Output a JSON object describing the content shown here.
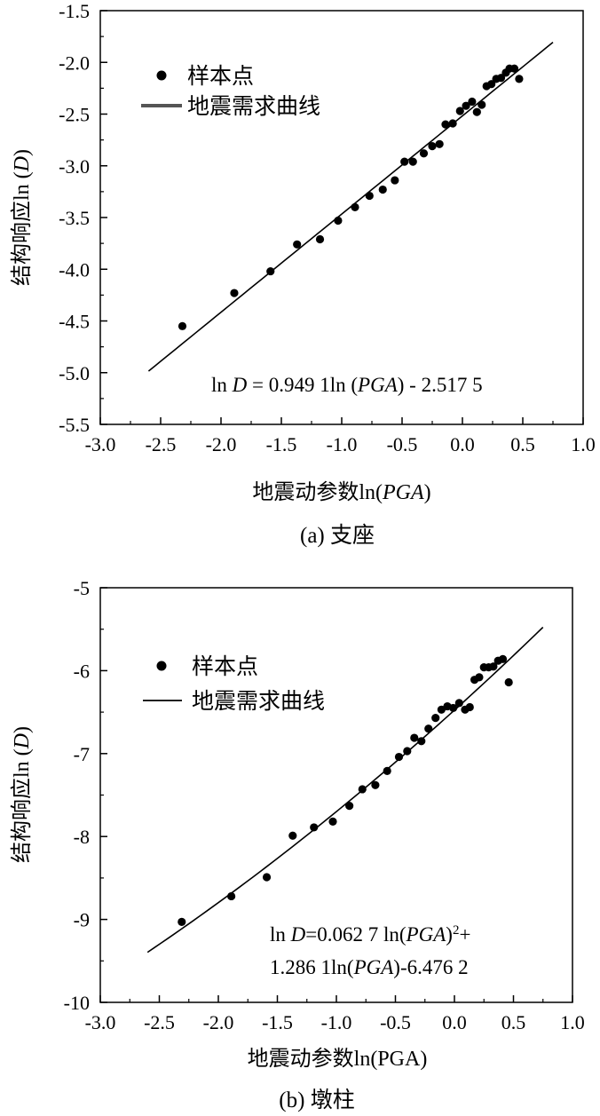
{
  "chart_data": [
    {
      "type": "scatter",
      "caption": "(a) 支座",
      "xlabel": "地震动参数ln(PGA)",
      "ylabel": "结构响应ln (D)",
      "xlim": [
        -3.0,
        1.0
      ],
      "ylim": [
        -5.5,
        -1.5
      ],
      "x_ticks": [
        "-3.0",
        "-2.5",
        "-2.0",
        "-1.5",
        "-1.0",
        "-0.5",
        "0.0",
        "0.5",
        "1.0"
      ],
      "y_ticks": [
        "-1.5",
        "-2.0",
        "-2.5",
        "-3.0",
        "-3.5",
        "-4.0",
        "-4.5",
        "-5.0",
        "-5.5"
      ],
      "legend": [
        "样本点",
        "地震需求曲线"
      ],
      "legend_position": "top-left",
      "equation": "ln D = 0.949 1ln (PGA) - 2.517 5",
      "fit": {
        "model": "linear",
        "a": 0.9491,
        "b": -2.5175,
        "x_range": [
          -2.6,
          0.75
        ],
        "line_color": "#000000",
        "legend_line_color": "#555555"
      },
      "points": [
        {
          "x": -2.32,
          "y": -4.55
        },
        {
          "x": -1.89,
          "y": -4.23
        },
        {
          "x": -1.59,
          "y": -4.02
        },
        {
          "x": -1.37,
          "y": -3.76
        },
        {
          "x": -1.18,
          "y": -3.71
        },
        {
          "x": -1.03,
          "y": -3.53
        },
        {
          "x": -0.89,
          "y": -3.4
        },
        {
          "x": -0.77,
          "y": -3.29
        },
        {
          "x": -0.66,
          "y": -3.23
        },
        {
          "x": -0.56,
          "y": -3.14
        },
        {
          "x": -0.48,
          "y": -2.96
        },
        {
          "x": -0.41,
          "y": -2.96
        },
        {
          "x": -0.32,
          "y": -2.88
        },
        {
          "x": -0.25,
          "y": -2.81
        },
        {
          "x": -0.19,
          "y": -2.79
        },
        {
          "x": -0.14,
          "y": -2.6
        },
        {
          "x": -0.08,
          "y": -2.59
        },
        {
          "x": -0.02,
          "y": -2.47
        },
        {
          "x": 0.03,
          "y": -2.42
        },
        {
          "x": 0.08,
          "y": -2.38
        },
        {
          "x": 0.12,
          "y": -2.48
        },
        {
          "x": 0.16,
          "y": -2.41
        },
        {
          "x": 0.2,
          "y": -2.23
        },
        {
          "x": 0.24,
          "y": -2.21
        },
        {
          "x": 0.28,
          "y": -2.16
        },
        {
          "x": 0.32,
          "y": -2.15
        },
        {
          "x": 0.36,
          "y": -2.1
        },
        {
          "x": 0.39,
          "y": -2.06
        },
        {
          "x": 0.43,
          "y": -2.06
        },
        {
          "x": 0.47,
          "y": -2.16
        }
      ]
    },
    {
      "type": "scatter",
      "caption": "(b) 墩柱",
      "xlabel": "地震动参数ln(PGA)",
      "ylabel": "结构响应ln (D)",
      "xlim": [
        -3.0,
        1.0
      ],
      "ylim": [
        -10,
        -5
      ],
      "x_ticks": [
        "-3.0",
        "-2.5",
        "-2.0",
        "-1.5",
        "-1.0",
        "-0.5",
        "0.0",
        "0.5",
        "1.0"
      ],
      "y_ticks": [
        "-5",
        "-6",
        "-7",
        "-8",
        "-9",
        "-10"
      ],
      "legend": [
        "样本点",
        "地震需求曲线"
      ],
      "legend_position": "top-left",
      "equation_line1": "ln D=0.062 7 ln(PGA)2+",
      "equation_line2": "1.286 1ln(PGA)-6.476 2",
      "fit": {
        "model": "quadratic",
        "a2": 0.0627,
        "a1": 1.2861,
        "a0": -6.4762,
        "x_range": [
          -2.6,
          0.75
        ],
        "line_color": "#000000",
        "legend_line_color": "#000000"
      },
      "points": [
        {
          "x": -2.31,
          "y": -9.03
        },
        {
          "x": -1.89,
          "y": -8.72
        },
        {
          "x": -1.59,
          "y": -8.49
        },
        {
          "x": -1.37,
          "y": -7.99
        },
        {
          "x": -1.19,
          "y": -7.89
        },
        {
          "x": -1.03,
          "y": -7.82
        },
        {
          "x": -0.89,
          "y": -7.63
        },
        {
          "x": -0.78,
          "y": -7.43
        },
        {
          "x": -0.67,
          "y": -7.38
        },
        {
          "x": -0.57,
          "y": -7.21
        },
        {
          "x": -0.47,
          "y": -7.04
        },
        {
          "x": -0.4,
          "y": -6.97
        },
        {
          "x": -0.34,
          "y": -6.81
        },
        {
          "x": -0.28,
          "y": -6.85
        },
        {
          "x": -0.22,
          "y": -6.7
        },
        {
          "x": -0.16,
          "y": -6.57
        },
        {
          "x": -0.11,
          "y": -6.47
        },
        {
          "x": -0.06,
          "y": -6.43
        },
        {
          "x": -0.01,
          "y": -6.45
        },
        {
          "x": 0.04,
          "y": -6.39
        },
        {
          "x": 0.09,
          "y": -6.47
        },
        {
          "x": 0.13,
          "y": -6.44
        },
        {
          "x": 0.17,
          "y": -6.11
        },
        {
          "x": 0.21,
          "y": -6.08
        },
        {
          "x": 0.25,
          "y": -5.96
        },
        {
          "x": 0.29,
          "y": -5.96
        },
        {
          "x": 0.33,
          "y": -5.95
        },
        {
          "x": 0.37,
          "y": -5.88
        },
        {
          "x": 0.41,
          "y": -5.86
        },
        {
          "x": 0.46,
          "y": -6.14
        }
      ]
    }
  ]
}
